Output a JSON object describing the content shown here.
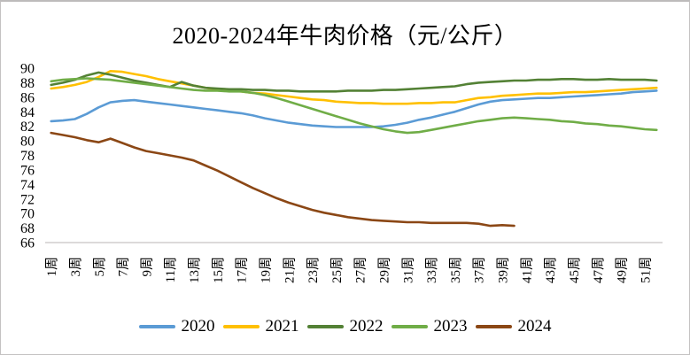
{
  "chart_data": {
    "type": "line",
    "title": "2020-2024年牛肉价格（元/公斤）",
    "xlabel": "",
    "ylabel": "",
    "x_unit": "周",
    "weeks_total": 52,
    "xticklabels": [
      "1周",
      "3周",
      "5周",
      "7周",
      "9周",
      "11周",
      "13周",
      "15周",
      "17周",
      "19周",
      "21周",
      "23周",
      "25周",
      "27周",
      "29周",
      "31周",
      "33周",
      "35周",
      "37周",
      "39周",
      "41周",
      "43周",
      "45周",
      "47周",
      "49周",
      "51周"
    ],
    "yticks": [
      90,
      88,
      86,
      84,
      82,
      80,
      78,
      76,
      74,
      72,
      70,
      68,
      66
    ],
    "ylim": [
      66,
      90
    ],
    "grid": false,
    "legend_position": "bottom",
    "axis_color": "#d0cece",
    "series": [
      {
        "name": "2020",
        "color": "#5B9BD5",
        "start_week": 1,
        "values": [
          82.7,
          82.8,
          83.0,
          83.7,
          84.6,
          85.3,
          85.5,
          85.6,
          85.4,
          85.2,
          85.0,
          84.8,
          84.6,
          84.4,
          84.2,
          84.0,
          83.8,
          83.5,
          83.1,
          82.8,
          82.5,
          82.3,
          82.1,
          82.0,
          81.9,
          81.9,
          81.9,
          81.9,
          82.0,
          82.2,
          82.5,
          82.9,
          83.2,
          83.6,
          84.0,
          84.5,
          85.0,
          85.4,
          85.6,
          85.7,
          85.8,
          85.9,
          85.9,
          86.0,
          86.1,
          86.2,
          86.3,
          86.4,
          86.5,
          86.7,
          86.8,
          86.9
        ]
      },
      {
        "name": "2021",
        "color": "#FFC000",
        "start_week": 1,
        "values": [
          87.2,
          87.4,
          87.7,
          88.1,
          88.8,
          89.6,
          89.5,
          89.2,
          88.9,
          88.5,
          88.2,
          87.9,
          87.6,
          87.3,
          87.1,
          86.9,
          86.8,
          86.6,
          86.5,
          86.3,
          86.1,
          85.9,
          85.7,
          85.6,
          85.4,
          85.3,
          85.2,
          85.2,
          85.1,
          85.1,
          85.1,
          85.2,
          85.2,
          85.3,
          85.3,
          85.6,
          85.9,
          86.0,
          86.2,
          86.3,
          86.4,
          86.5,
          86.5,
          86.6,
          86.7,
          86.7,
          86.8,
          86.9,
          87.0,
          87.1,
          87.2,
          87.3
        ]
      },
      {
        "name": "2022",
        "color": "#538135",
        "start_week": 1,
        "values": [
          87.7,
          88.0,
          88.4,
          89.0,
          89.4,
          89.1,
          88.7,
          88.3,
          88.0,
          87.7,
          87.4,
          88.1,
          87.6,
          87.3,
          87.2,
          87.1,
          87.1,
          87.0,
          87.0,
          86.9,
          86.9,
          86.8,
          86.8,
          86.8,
          86.8,
          86.9,
          86.9,
          86.9,
          87.0,
          87.0,
          87.1,
          87.2,
          87.3,
          87.4,
          87.5,
          87.8,
          88.0,
          88.1,
          88.2,
          88.3,
          88.3,
          88.4,
          88.4,
          88.5,
          88.5,
          88.4,
          88.4,
          88.5,
          88.4,
          88.4,
          88.4,
          88.3
        ]
      },
      {
        "name": "2023",
        "color": "#70AD47",
        "start_week": 1,
        "values": [
          88.2,
          88.4,
          88.5,
          88.6,
          88.5,
          88.4,
          88.2,
          88.0,
          87.8,
          87.6,
          87.4,
          87.2,
          87.0,
          86.9,
          86.9,
          86.8,
          86.8,
          86.6,
          86.3,
          85.9,
          85.4,
          84.9,
          84.4,
          83.9,
          83.4,
          82.9,
          82.4,
          82.0,
          81.6,
          81.3,
          81.1,
          81.2,
          81.5,
          81.8,
          82.1,
          82.4,
          82.7,
          82.9,
          83.1,
          83.2,
          83.1,
          83.0,
          82.9,
          82.7,
          82.6,
          82.4,
          82.3,
          82.1,
          82.0,
          81.8,
          81.6,
          81.5
        ]
      },
      {
        "name": "2024",
        "color": "#8B4715",
        "start_week": 1,
        "values": [
          81.1,
          80.8,
          80.5,
          80.1,
          79.8,
          80.3,
          79.7,
          79.1,
          78.6,
          78.3,
          78.0,
          77.7,
          77.3,
          76.6,
          75.9,
          75.1,
          74.3,
          73.5,
          72.8,
          72.1,
          71.5,
          71.0,
          70.5,
          70.1,
          69.8,
          69.5,
          69.3,
          69.1,
          69.0,
          68.9,
          68.8,
          68.8,
          68.7,
          68.7,
          68.7,
          68.7,
          68.6,
          68.3,
          68.4,
          68.3
        ]
      }
    ]
  }
}
